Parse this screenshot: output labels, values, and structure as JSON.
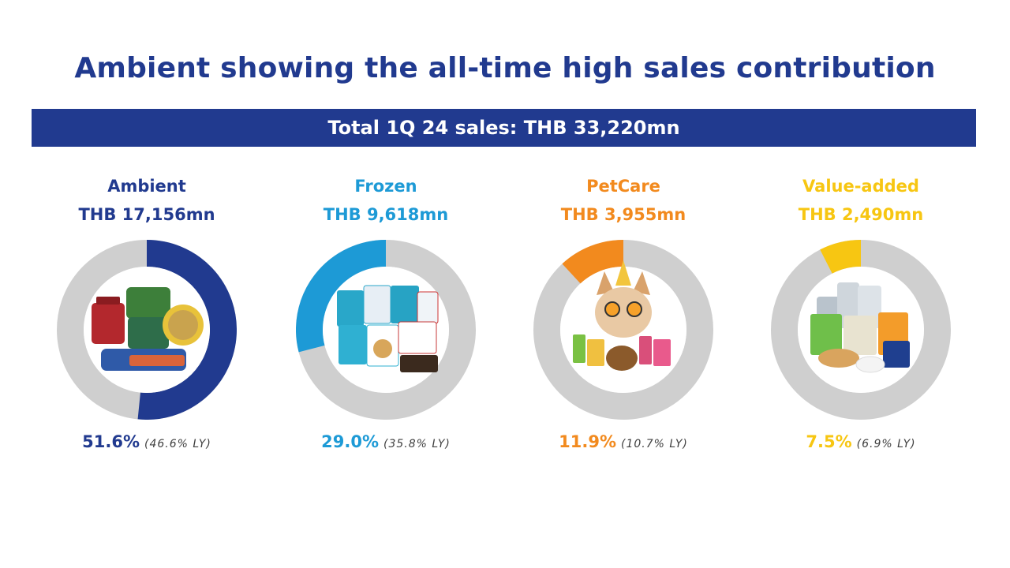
{
  "title": "Ambient showing the all-time high sales contribution",
  "banner": "Total 1Q 24 sales: THB 33,220mn",
  "colors": {
    "navy": "#213a8f",
    "track": "#cfcfcf",
    "ambient": "#213a8f",
    "frozen": "#1d9ad6",
    "petcare": "#f28a1e",
    "value_added": "#f7c612"
  },
  "chart_data": {
    "type": "pie",
    "title": "Total 1Q 24 sales: THB 33,220mn",
    "categories": [
      "Ambient",
      "Frozen",
      "PetCare",
      "Value-added"
    ],
    "values": [
      51.6,
      29.0,
      11.9,
      7.5
    ],
    "last_year_values": [
      46.6,
      35.8,
      10.7,
      6.9
    ],
    "amounts": [
      "THB 17,156mn",
      "THB 9,618mn",
      "THB 3,955mn",
      "THB 2,490mn"
    ],
    "segments": [
      {
        "name": "Ambient",
        "amount": "THB 17,156mn",
        "share": "51.6%",
        "last_year": "(46.6% LY)",
        "value": 51.6,
        "color": "#213a8f",
        "icon": "canned-seafood-products-icon"
      },
      {
        "name": "Frozen",
        "amount": "THB 9,618mn",
        "share": "29.0%",
        "last_year": "(35.8% LY)",
        "value": 29.0,
        "color": "#1d9ad6",
        "icon": "frozen-food-packs-icon"
      },
      {
        "name": "PetCare",
        "amount": "THB 3,955mn",
        "share": "11.9%",
        "last_year": "(10.7% LY)",
        "value": 11.9,
        "color": "#f28a1e",
        "icon": "cat-with-pet-food-icon"
      },
      {
        "name": "Value-added",
        "amount": "THB 2,490mn",
        "share": "7.5%",
        "last_year": "(6.9% LY)",
        "value": 7.5,
        "color": "#f7c612",
        "icon": "supplement-products-icon"
      }
    ]
  }
}
